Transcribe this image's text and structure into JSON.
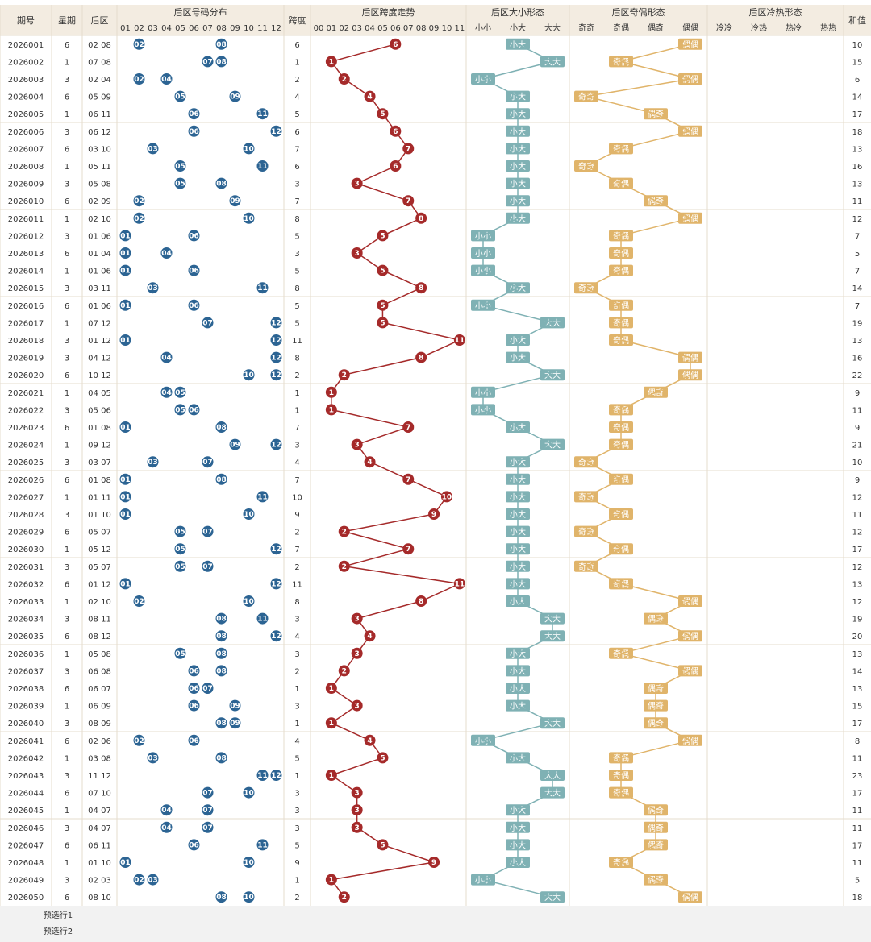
{
  "header": {
    "issue": "期号",
    "week": "星期",
    "rear": "后区",
    "dist": "后区号码分布",
    "span": "跨度",
    "trend": "后区跨度走势",
    "sz": "后区大小形态",
    "oe": "后区奇偶形态",
    "ch": "后区冷热形态",
    "sum": "和值",
    "sz_sub": [
      "小小",
      "小大",
      "大大"
    ],
    "oe_sub": [
      "奇奇",
      "奇偶",
      "偶奇",
      "偶偶"
    ],
    "ch_sub": [
      "冷冷",
      "冷热",
      "热冷",
      "热热"
    ]
  },
  "footer": {
    "pick1": "预选行1",
    "pick2": "预选行2"
  },
  "colors": {
    "ball": "#2c6493",
    "trend": "#a52a2a",
    "size": "#7fb1b4",
    "oe": "#e0b46a",
    "header_bg": "#f3ece1"
  },
  "chart_data": {
    "type": "table",
    "rows": [
      {
        "issue": "2026001",
        "week": "6",
        "rear": "02 08",
        "a": 2,
        "b": 8,
        "span": 6,
        "sum": 10
      },
      {
        "issue": "2026002",
        "week": "1",
        "rear": "07 08",
        "a": 7,
        "b": 8,
        "span": 1,
        "sum": 15
      },
      {
        "issue": "2026003",
        "week": "3",
        "rear": "02 04",
        "a": 2,
        "b": 4,
        "span": 2,
        "sum": 6
      },
      {
        "issue": "2026004",
        "week": "6",
        "rear": "05 09",
        "a": 5,
        "b": 9,
        "span": 4,
        "sum": 14
      },
      {
        "issue": "2026005",
        "week": "1",
        "rear": "06 11",
        "a": 6,
        "b": 11,
        "span": 5,
        "sum": 17
      },
      {
        "issue": "2026006",
        "week": "3",
        "rear": "06 12",
        "a": 6,
        "b": 12,
        "span": 6,
        "sum": 18
      },
      {
        "issue": "2026007",
        "week": "6",
        "rear": "03 10",
        "a": 3,
        "b": 10,
        "span": 7,
        "sum": 13
      },
      {
        "issue": "2026008",
        "week": "1",
        "rear": "05 11",
        "a": 5,
        "b": 11,
        "span": 6,
        "sum": 16
      },
      {
        "issue": "2026009",
        "week": "3",
        "rear": "05 08",
        "a": 5,
        "b": 8,
        "span": 3,
        "sum": 13
      },
      {
        "issue": "2026010",
        "week": "6",
        "rear": "02 09",
        "a": 2,
        "b": 9,
        "span": 7,
        "sum": 11
      },
      {
        "issue": "2026011",
        "week": "1",
        "rear": "02 10",
        "a": 2,
        "b": 10,
        "span": 8,
        "sum": 12
      },
      {
        "issue": "2026012",
        "week": "3",
        "rear": "01 06",
        "a": 1,
        "b": 6,
        "span": 5,
        "sum": 7
      },
      {
        "issue": "2026013",
        "week": "6",
        "rear": "01 04",
        "a": 1,
        "b": 4,
        "span": 3,
        "sum": 5
      },
      {
        "issue": "2026014",
        "week": "1",
        "rear": "01 06",
        "a": 1,
        "b": 6,
        "span": 5,
        "sum": 7
      },
      {
        "issue": "2026015",
        "week": "3",
        "rear": "03 11",
        "a": 3,
        "b": 11,
        "span": 8,
        "sum": 14
      },
      {
        "issue": "2026016",
        "week": "6",
        "rear": "01 06",
        "a": 1,
        "b": 6,
        "span": 5,
        "sum": 7
      },
      {
        "issue": "2026017",
        "week": "1",
        "rear": "07 12",
        "a": 7,
        "b": 12,
        "span": 5,
        "sum": 19
      },
      {
        "issue": "2026018",
        "week": "3",
        "rear": "01 12",
        "a": 1,
        "b": 12,
        "span": 11,
        "sum": 13
      },
      {
        "issue": "2026019",
        "week": "3",
        "rear": "04 12",
        "a": 4,
        "b": 12,
        "span": 8,
        "sum": 16
      },
      {
        "issue": "2026020",
        "week": "6",
        "rear": "10 12",
        "a": 10,
        "b": 12,
        "span": 2,
        "sum": 22
      },
      {
        "issue": "2026021",
        "week": "1",
        "rear": "04 05",
        "a": 4,
        "b": 5,
        "span": 1,
        "sum": 9
      },
      {
        "issue": "2026022",
        "week": "3",
        "rear": "05 06",
        "a": 5,
        "b": 6,
        "span": 1,
        "sum": 11
      },
      {
        "issue": "2026023",
        "week": "6",
        "rear": "01 08",
        "a": 1,
        "b": 8,
        "span": 7,
        "sum": 9
      },
      {
        "issue": "2026024",
        "week": "1",
        "rear": "09 12",
        "a": 9,
        "b": 12,
        "span": 3,
        "sum": 21
      },
      {
        "issue": "2026025",
        "week": "3",
        "rear": "03 07",
        "a": 3,
        "b": 7,
        "span": 4,
        "sum": 10
      },
      {
        "issue": "2026026",
        "week": "6",
        "rear": "01 08",
        "a": 1,
        "b": 8,
        "span": 7,
        "sum": 9
      },
      {
        "issue": "2026027",
        "week": "1",
        "rear": "01 11",
        "a": 1,
        "b": 11,
        "span": 10,
        "sum": 12
      },
      {
        "issue": "2026028",
        "week": "3",
        "rear": "01 10",
        "a": 1,
        "b": 10,
        "span": 9,
        "sum": 11
      },
      {
        "issue": "2026029",
        "week": "6",
        "rear": "05 07",
        "a": 5,
        "b": 7,
        "span": 2,
        "sum": 12
      },
      {
        "issue": "2026030",
        "week": "1",
        "rear": "05 12",
        "a": 5,
        "b": 12,
        "span": 7,
        "sum": 17
      },
      {
        "issue": "2026031",
        "week": "3",
        "rear": "05 07",
        "a": 5,
        "b": 7,
        "span": 2,
        "sum": 12
      },
      {
        "issue": "2026032",
        "week": "6",
        "rear": "01 12",
        "a": 1,
        "b": 12,
        "span": 11,
        "sum": 13
      },
      {
        "issue": "2026033",
        "week": "1",
        "rear": "02 10",
        "a": 2,
        "b": 10,
        "span": 8,
        "sum": 12
      },
      {
        "issue": "2026034",
        "week": "3",
        "rear": "08 11",
        "a": 8,
        "b": 11,
        "span": 3,
        "sum": 19
      },
      {
        "issue": "2026035",
        "week": "6",
        "rear": "08 12",
        "a": 8,
        "b": 12,
        "span": 4,
        "sum": 20
      },
      {
        "issue": "2026036",
        "week": "1",
        "rear": "05 08",
        "a": 5,
        "b": 8,
        "span": 3,
        "sum": 13
      },
      {
        "issue": "2026037",
        "week": "3",
        "rear": "06 08",
        "a": 6,
        "b": 8,
        "span": 2,
        "sum": 14
      },
      {
        "issue": "2026038",
        "week": "6",
        "rear": "06 07",
        "a": 6,
        "b": 7,
        "span": 1,
        "sum": 13
      },
      {
        "issue": "2026039",
        "week": "1",
        "rear": "06 09",
        "a": 6,
        "b": 9,
        "span": 3,
        "sum": 15
      },
      {
        "issue": "2026040",
        "week": "3",
        "rear": "08 09",
        "a": 8,
        "b": 9,
        "span": 1,
        "sum": 17
      },
      {
        "issue": "2026041",
        "week": "6",
        "rear": "02 06",
        "a": 2,
        "b": 6,
        "span": 4,
        "sum": 8
      },
      {
        "issue": "2026042",
        "week": "1",
        "rear": "03 08",
        "a": 3,
        "b": 8,
        "span": 5,
        "sum": 11
      },
      {
        "issue": "2026043",
        "week": "3",
        "rear": "11 12",
        "a": 11,
        "b": 12,
        "span": 1,
        "sum": 23
      },
      {
        "issue": "2026044",
        "week": "6",
        "rear": "07 10",
        "a": 7,
        "b": 10,
        "span": 3,
        "sum": 17
      },
      {
        "issue": "2026045",
        "week": "1",
        "rear": "04 07",
        "a": 4,
        "b": 7,
        "span": 3,
        "sum": 11
      },
      {
        "issue": "2026046",
        "week": "3",
        "rear": "04 07",
        "a": 4,
        "b": 7,
        "span": 3,
        "sum": 11
      },
      {
        "issue": "2026047",
        "week": "6",
        "rear": "06 11",
        "a": 6,
        "b": 11,
        "span": 5,
        "sum": 17
      },
      {
        "issue": "2026048",
        "week": "1",
        "rear": "01 10",
        "a": 1,
        "b": 10,
        "span": 9,
        "sum": 11
      },
      {
        "issue": "2026049",
        "week": "3",
        "rear": "02 03",
        "a": 2,
        "b": 3,
        "span": 1,
        "sum": 5
      },
      {
        "issue": "2026050",
        "week": "6",
        "rear": "08 10",
        "a": 8,
        "b": 10,
        "span": 2,
        "sum": 18
      }
    ]
  }
}
